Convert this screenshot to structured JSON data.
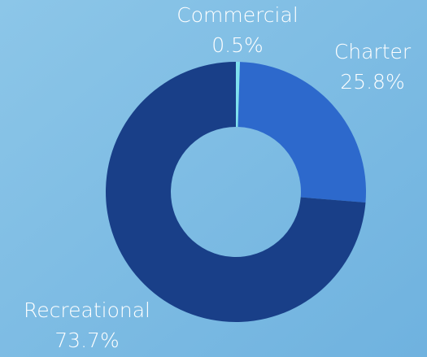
{
  "chart_data": {
    "type": "donut",
    "categories": [
      "Commercial",
      "Charter",
      "Recreational"
    ],
    "values": [
      0.5,
      25.8,
      73.7
    ],
    "value_labels": [
      "0.5%",
      "25.8%",
      "73.7%"
    ],
    "colors": [
      "#7fe0ee",
      "#2d69cc",
      "#193f88"
    ]
  }
}
